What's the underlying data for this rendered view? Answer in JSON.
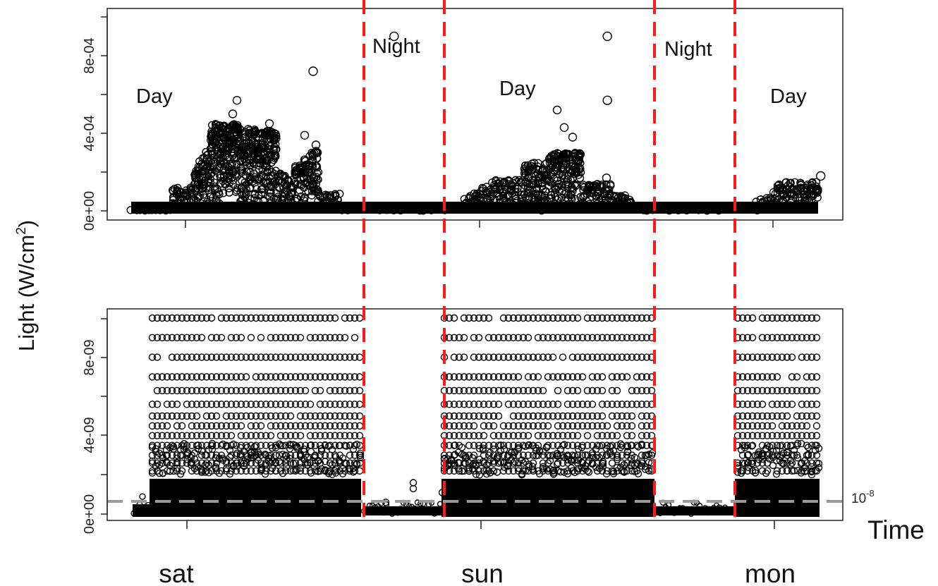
{
  "chart_data": [
    {
      "type": "scatter",
      "panel": "top",
      "ylabel": "Light (W/cm²)",
      "ylim": [
        0,
        0.001
      ],
      "yticks": [
        "0e+00",
        "4e-04",
        "8e-04"
      ],
      "ytick_values": [
        0,
        0.0004,
        0.0008
      ],
      "xticks": [
        "sat",
        "sun",
        "mon"
      ],
      "annotations": [
        "Day",
        "Night",
        "Day",
        "Night",
        "Day"
      ],
      "peaks": [
        {
          "x": 0.28,
          "y": 0.00072
        },
        {
          "x": 0.39,
          "y": 0.0009
        },
        {
          "x": 0.68,
          "y": 0.0009
        },
        {
          "x": 0.68,
          "y": 0.00057
        },
        {
          "x": 0.97,
          "y": 0.00018
        }
      ]
    },
    {
      "type": "scatter",
      "panel": "bottom",
      "ylabel": "Light (W/cm²)",
      "xlabel": "Time",
      "ylim": [
        0,
        1e-08
      ],
      "yticks": [
        "0e+00",
        "4e-09",
        "8e-09"
      ],
      "ytick_values": [
        0,
        4e-09,
        8e-09
      ],
      "xticks": [
        "sat",
        "sun",
        "mon"
      ],
      "threshold_label_base": "10",
      "threshold_label_exp": "-8",
      "threshold_value": 1e-08,
      "y_levels": [
        1e-08,
        9e-09,
        8e-09,
        7e-09,
        6.3e-09,
        5.6e-09,
        5e-09,
        4.5e-09,
        4e-09,
        3.5e-09,
        3e-09,
        2.6e-09,
        2.2e-09
      ]
    }
  ],
  "labels": {
    "ylabel_main": "Light (W/cm",
    "ylabel_sup": "2",
    "ylabel_close": ")",
    "xlabel": "Time",
    "day1": "Day",
    "night1": "Night",
    "day2": "Day",
    "night2": "Night",
    "day3": "Day",
    "sat": "sat",
    "sun": "sun",
    "mon": "mon",
    "top_tick_0": "0e+00",
    "top_tick_1": "4e-04",
    "top_tick_2": "8e-04",
    "bot_tick_0": "0e+00",
    "bot_tick_1": "4e-09",
    "bot_tick_2": "8e-09",
    "thr_base": "10",
    "thr_exp": "-8"
  },
  "colors": {
    "boundary": "#ff1a1a",
    "threshold": "#999999",
    "points": "#000000"
  }
}
